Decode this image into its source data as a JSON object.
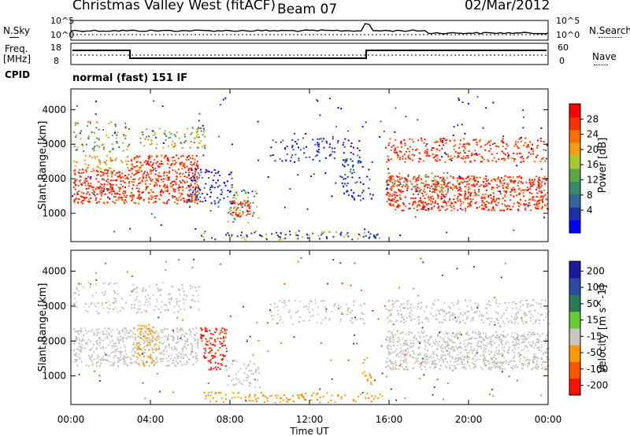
{
  "header": {
    "title": "Christmas Valley West (fitACF)",
    "beam": "Beam 07",
    "date": "02/Mar/2012"
  },
  "top_panels": {
    "nsky_label": "N.Sky",
    "nsky_ticks": [
      "10^5",
      "10^0"
    ],
    "nsearch_label": "N.Search",
    "nsearch_ticks": [
      "10^5",
      "10^0"
    ],
    "freq_label_1": "Freq.",
    "freq_label_2": "[MHz]",
    "freq_ticks": [
      "18",
      "8"
    ],
    "nave_label": "Nave",
    "nave_ticks": [
      "60",
      "0"
    ],
    "cpid_label": "CPID",
    "cpid_value": "normal (fast) 151 IF"
  },
  "colors": {
    "power": [
      "#0000ff",
      "#1a2fa8",
      "#336699",
      "#3a8a6a",
      "#5aa84a",
      "#a8c832",
      "#f0a010",
      "#ff7000",
      "#ff3000",
      "#ff0000"
    ],
    "velocity": [
      "#1a1aa0",
      "#2a4aa8",
      "#2a7a5a",
      "#66cc33",
      "#c8c8c0",
      "#ff9900",
      "#ff5500",
      "#ff1100"
    ]
  },
  "chart_data": [
    {
      "type": "heatmap",
      "name": "power",
      "ylabel": "Slant Range [km]",
      "xlabel": "Time UT",
      "x_ticks": [
        "00:00",
        "04:00",
        "08:00",
        "12:00",
        "16:00",
        "20:00",
        "00:00"
      ],
      "y_ticks": [
        "1000",
        "2000",
        "3000",
        "4000"
      ],
      "ylim": [
        180,
        4600
      ],
      "colorbar_label": "Power [dB]",
      "colorbar_ticks": [
        "4",
        "8",
        "12",
        "16",
        "20",
        "24",
        "28"
      ]
    },
    {
      "type": "heatmap",
      "name": "velocity",
      "ylabel": "Slant Range [km]",
      "xlabel": "Time UT",
      "x_ticks": [
        "00:00",
        "04:00",
        "08:00",
        "12:00",
        "16:00",
        "20:00",
        "00:00"
      ],
      "y_ticks": [
        "1000",
        "2000",
        "3000",
        "4000"
      ],
      "ylim": [
        180,
        4600
      ],
      "colorbar_label": "Velocity [m s^-1]",
      "colorbar_ticks": [
        "200",
        "100",
        "50",
        "15",
        "-15",
        "-50",
        "-100",
        "-200"
      ]
    }
  ]
}
